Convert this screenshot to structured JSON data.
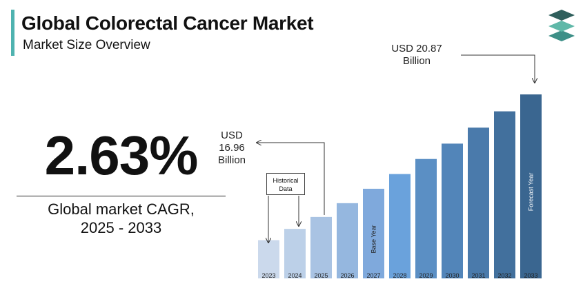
{
  "header": {
    "title": "Global Colorectal Cancer Market",
    "subtitle": "Market Size Overview"
  },
  "logo": {
    "icon": "layered-stack-icon",
    "colors": [
      "#2f5f5c",
      "#5fb8a8",
      "#3d8f87"
    ]
  },
  "cagr": {
    "value": "2.63%",
    "label_line1": "Global market CAGR,",
    "label_line2": "2025 - 2033"
  },
  "annotations": {
    "start_value_lines": [
      "USD",
      "16.96",
      "Billion"
    ],
    "end_value_lines": [
      "USD 20.87",
      "Billion"
    ],
    "historical_box_lines": [
      "Historical",
      "Data"
    ],
    "base_year_label": "Base Year",
    "forecast_year_label": "Forecast Year"
  },
  "chart_data": {
    "type": "bar",
    "title": "",
    "xlabel": "",
    "ylabel": "",
    "categories": [
      "2023",
      "2024",
      "2025",
      "2026",
      "2027",
      "2028",
      "2029",
      "2030",
      "2031",
      "2032",
      "2033"
    ],
    "values": [
      16.22,
      16.58,
      16.96,
      17.4,
      17.86,
      18.33,
      18.81,
      19.3,
      19.81,
      20.33,
      20.87
    ],
    "ylim": [
      15.0,
      21.5
    ],
    "grid": false,
    "legend": "none",
    "colors": [
      "#cbd9ec",
      "#bcd0e8",
      "#a9c3e3",
      "#95b7df",
      "#7fa9dc",
      "#6aa2dc",
      "#5b8fc4",
      "#5285b9",
      "#4a7aab",
      "#42709d",
      "#3a6690"
    ]
  }
}
